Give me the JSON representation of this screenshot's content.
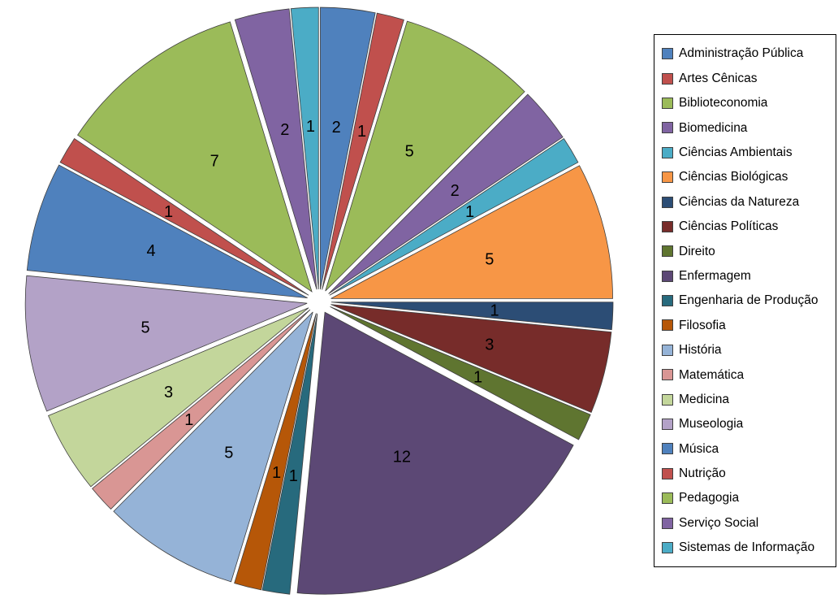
{
  "chart_data": {
    "type": "pie",
    "title": "",
    "legend_position": "right",
    "start_angle": "12 o'clock",
    "direction": "clockwise",
    "exploded": true,
    "data_labels": "value",
    "background_color": "#FFFFFF",
    "label_color": "#000000",
    "legend_border_color": "#000000",
    "total": 64,
    "slices": [
      {
        "label": "Administração Pública",
        "value": 2,
        "color": "#4F81BD"
      },
      {
        "label": "Artes Cênicas",
        "value": 1,
        "color": "#C0504D"
      },
      {
        "label": "Biblioteconomia",
        "value": 5,
        "color": "#9BBB59"
      },
      {
        "label": "Biomedicina",
        "value": 2,
        "color": "#8064A2"
      },
      {
        "label": "Ciências Ambientais",
        "value": 1,
        "color": "#4BACC6"
      },
      {
        "label": "Ciências Biológicas",
        "value": 5,
        "color": "#F79646"
      },
      {
        "label": "Ciências da Natureza",
        "value": 1,
        "color": "#2C4D75"
      },
      {
        "label": "Ciências Políticas",
        "value": 3,
        "color": "#772C2A"
      },
      {
        "label": "Direito",
        "value": 1,
        "color": "#5F7530"
      },
      {
        "label": "Enfermagem",
        "value": 12,
        "color": "#5C4875"
      },
      {
        "label": "Engenharia de Produção",
        "value": 1,
        "color": "#276A7D"
      },
      {
        "label": "Filosofia",
        "value": 1,
        "color": "#B65708"
      },
      {
        "label": "História",
        "value": 5,
        "color": "#95B3D7"
      },
      {
        "label": "Matemática",
        "value": 1,
        "color": "#D99694"
      },
      {
        "label": "Medicina",
        "value": 3,
        "color": "#C3D69B"
      },
      {
        "label": "Museologia",
        "value": 5,
        "color": "#B3A2C7"
      },
      {
        "label": "Música",
        "value": 4,
        "color": "#4F81BD"
      },
      {
        "label": "Nutrição",
        "value": 1,
        "color": "#C0504D"
      },
      {
        "label": "Pedagogia",
        "value": 7,
        "color": "#9BBB59"
      },
      {
        "label": "Serviço Social",
        "value": 2,
        "color": "#8064A2"
      },
      {
        "label": "Sistemas de Informação",
        "value": 1,
        "color": "#4BACC6"
      }
    ]
  }
}
